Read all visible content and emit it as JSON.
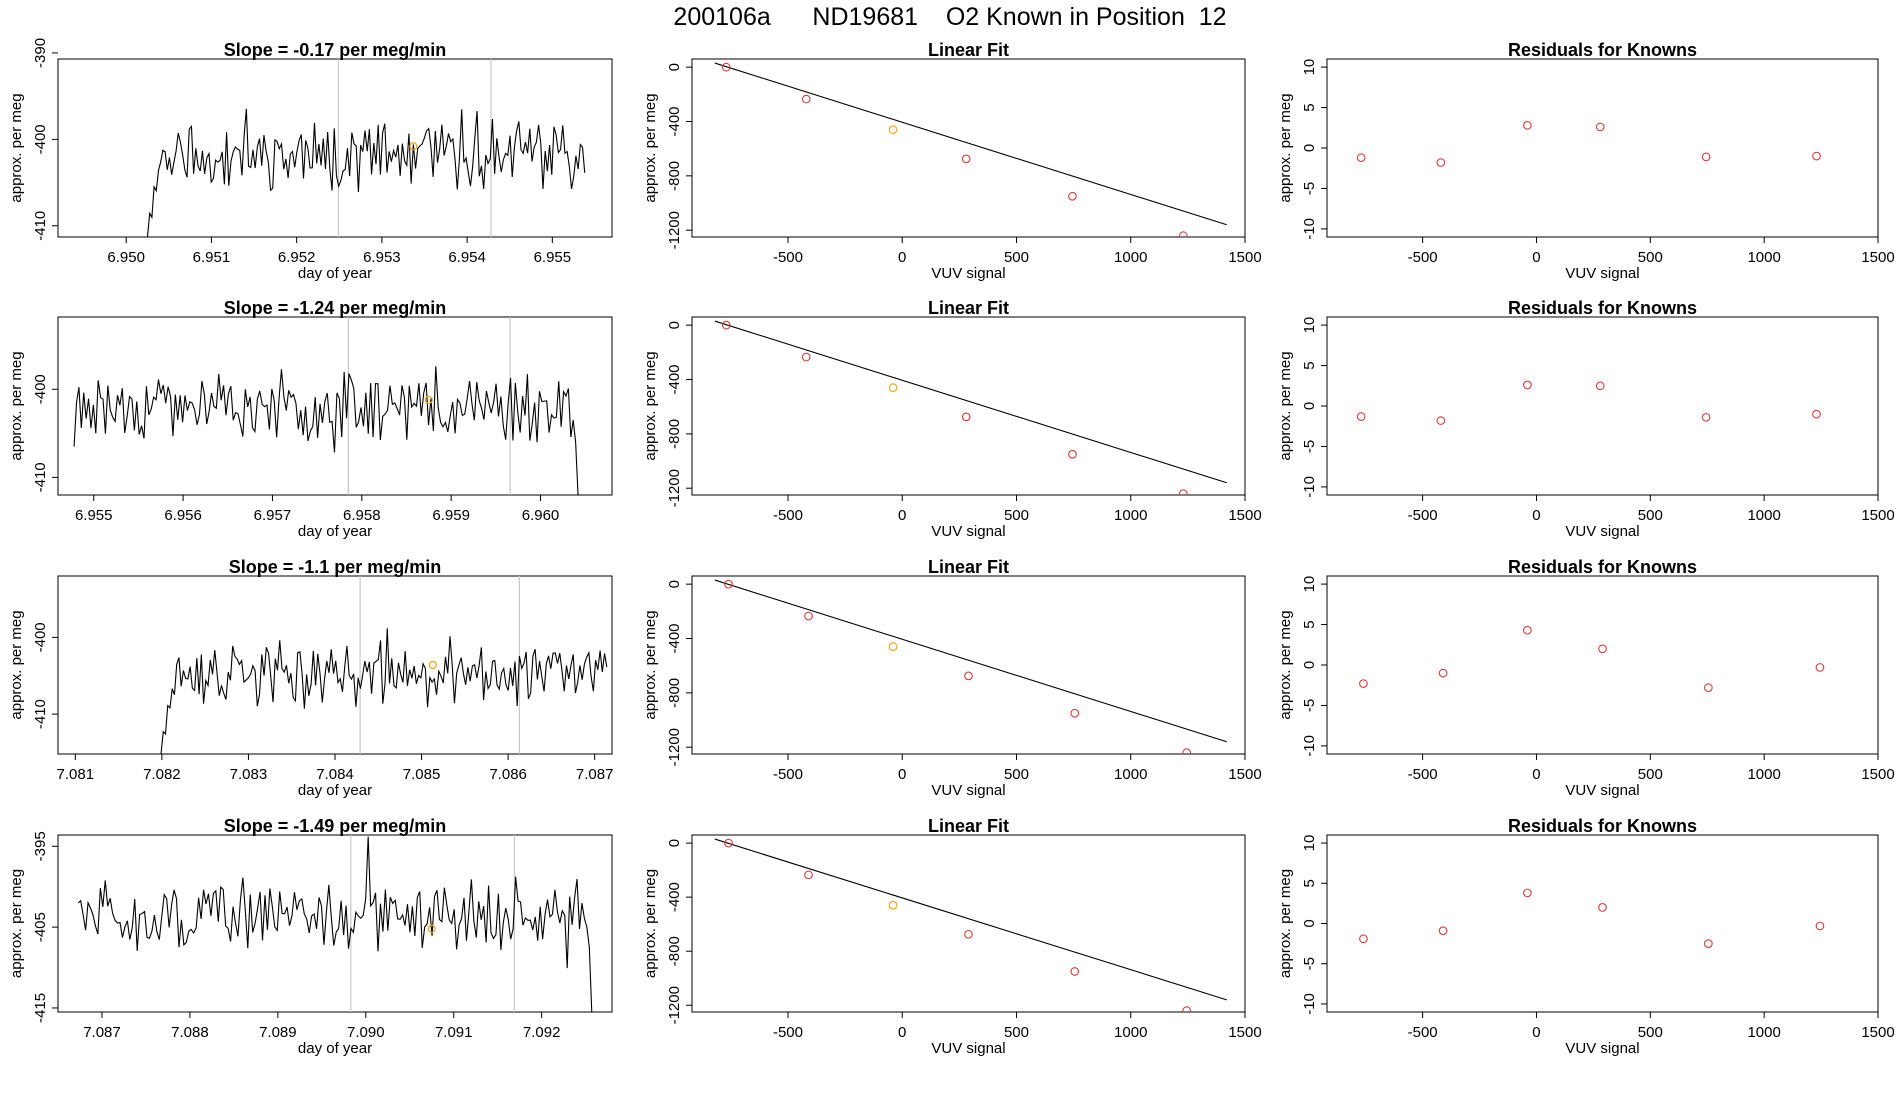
{
  "figure_title": "200106a      ND19681    O2 Known in Position  12",
  "colors": {
    "line": "#000000",
    "point": "#d93a3a",
    "highlight": "#f2a20c",
    "vline": "#c8c8c8",
    "frame": "#000000"
  },
  "chart_data": [
    {
      "type": "line",
      "panel": "timeseries",
      "row": 0,
      "title": "Slope =  -0.17  per meg/min",
      "xlabel": "day of year",
      "ylabel": "approx. per meg",
      "xlim": [
        6.9492,
        6.9557
      ],
      "ylim": [
        -411.3,
        -390.7
      ],
      "xticks": [
        6.95,
        6.951,
        6.952,
        6.953,
        6.954,
        6.955
      ],
      "xtick_labels": [
        "6.950",
        "6.951",
        "6.952",
        "6.953",
        "6.954",
        "6.955"
      ],
      "yticks": [
        -390,
        -400,
        -410
      ],
      "ytick_labels": [
        "-390",
        "-400",
        "-410"
      ],
      "vlines": [
        6.95249,
        6.95428
      ],
      "series": [
        {
          "x_start": 6.95025,
          "x_end": 6.95538,
          "baseline": -401.8,
          "amplitude": 3.0,
          "ramp_from": -411.3,
          "ramp_points": 5,
          "seed": 11,
          "n": 200
        }
      ],
      "highlight_point": {
        "x": 6.95337,
        "y": -400.8
      }
    },
    {
      "type": "scatter",
      "panel": "linear_fit",
      "row": 0,
      "title": "Linear Fit",
      "xlabel": "VUV signal",
      "ylabel": "approx. per meg",
      "xlim": [
        -920,
        1500
      ],
      "ylim": [
        -1250,
        60
      ],
      "xticks": [
        -500,
        0,
        500,
        1000,
        1500
      ],
      "xtick_labels": [
        "-500",
        "0",
        "500",
        "1000",
        "1500"
      ],
      "yticks": [
        0,
        -400,
        -800,
        -1200
      ],
      "ytick_labels": [
        "0",
        "-400",
        "-800",
        "-1200"
      ],
      "points": [
        [
          -770,
          0
        ],
        [
          -420,
          -235
        ],
        [
          -40,
          -460
        ],
        [
          280,
          -675
        ],
        [
          745,
          -950
        ],
        [
          1230,
          -1240
        ]
      ],
      "highlight_index": 2,
      "fit_line": {
        "x": [
          -820,
          1420
        ],
        "y": [
          30,
          -1160
        ]
      }
    },
    {
      "type": "scatter",
      "panel": "residuals",
      "row": 0,
      "title": "Residuals for Knowns",
      "xlabel": "VUV signal",
      "ylabel": "approx. per meg",
      "xlim": [
        -920,
        1500
      ],
      "ylim": [
        -11,
        11
      ],
      "xticks": [
        -500,
        0,
        500,
        1000,
        1500
      ],
      "xtick_labels": [
        "-500",
        "0",
        "500",
        "1000",
        "1500"
      ],
      "yticks": [
        10,
        5,
        0,
        -5,
        -10
      ],
      "ytick_labels": [
        "10",
        "5",
        "0",
        "-5",
        "-10"
      ],
      "points": [
        [
          -770,
          -1.2
        ],
        [
          -420,
          -1.8
        ],
        [
          -40,
          2.8
        ],
        [
          280,
          2.6
        ],
        [
          745,
          -1.1
        ],
        [
          1230,
          -1.0
        ]
      ]
    },
    {
      "type": "line",
      "panel": "timeseries",
      "row": 1,
      "title": "Slope =  -1.24  per meg/min",
      "xlabel": "day of year",
      "ylabel": "approx. per meg",
      "xlim": [
        6.9546,
        6.9608
      ],
      "ylim": [
        -412.0,
        -391.8
      ],
      "xticks": [
        6.955,
        6.956,
        6.957,
        6.958,
        6.959,
        6.96
      ],
      "xtick_labels": [
        "6.955",
        "6.956",
        "6.957",
        "6.958",
        "6.959",
        "6.960"
      ],
      "yticks": [
        -400,
        -410
      ],
      "ytick_labels": [
        "-400",
        "-410"
      ],
      "vlines": [
        6.95785,
        6.95966
      ],
      "series": [
        {
          "x_start": 6.95478,
          "x_end": 6.96042,
          "baseline": -402.0,
          "amplitude": 3.0,
          "start_value": -406.5,
          "end_drop": -412.0,
          "seed": 23,
          "n": 210
        }
      ],
      "highlight_point": {
        "x": 6.95875,
        "y": -401.2
      }
    },
    {
      "type": "scatter",
      "panel": "linear_fit",
      "row": 1,
      "title": "Linear Fit",
      "xlabel": "VUV signal",
      "ylabel": "approx. per meg",
      "xlim": [
        -920,
        1500
      ],
      "ylim": [
        -1250,
        60
      ],
      "xticks": [
        -500,
        0,
        500,
        1000,
        1500
      ],
      "xtick_labels": [
        "-500",
        "0",
        "500",
        "1000",
        "1500"
      ],
      "yticks": [
        0,
        -400,
        -800,
        -1200
      ],
      "ytick_labels": [
        "0",
        "-400",
        "-800",
        "-1200"
      ],
      "points": [
        [
          -770,
          0
        ],
        [
          -420,
          -235
        ],
        [
          -40,
          -460
        ],
        [
          280,
          -675
        ],
        [
          745,
          -950
        ],
        [
          1230,
          -1240
        ]
      ],
      "highlight_index": 2,
      "fit_line": {
        "x": [
          -820,
          1420
        ],
        "y": [
          30,
          -1160
        ]
      }
    },
    {
      "type": "scatter",
      "panel": "residuals",
      "row": 1,
      "title": "Residuals for Knowns",
      "xlabel": "VUV signal",
      "ylabel": "approx. per meg",
      "xlim": [
        -920,
        1500
      ],
      "ylim": [
        -11,
        11
      ],
      "xticks": [
        -500,
        0,
        500,
        1000,
        1500
      ],
      "xtick_labels": [
        "-500",
        "0",
        "500",
        "1000",
        "1500"
      ],
      "yticks": [
        10,
        5,
        0,
        -5,
        -10
      ],
      "ytick_labels": [
        "10",
        "5",
        "0",
        "-5",
        "-10"
      ],
      "points": [
        [
          -770,
          -1.3
        ],
        [
          -420,
          -1.8
        ],
        [
          -40,
          2.6
        ],
        [
          280,
          2.5
        ],
        [
          745,
          -1.4
        ],
        [
          1230,
          -1.0
        ]
      ]
    },
    {
      "type": "line",
      "panel": "timeseries",
      "row": 2,
      "title": "Slope =  -1.1  per meg/min",
      "xlabel": "day of year",
      "ylabel": "approx. per meg",
      "xlim": [
        7.0808,
        7.0872
      ],
      "ylim": [
        -415.2,
        -392.0
      ],
      "xticks": [
        7.081,
        7.082,
        7.083,
        7.084,
        7.085,
        7.086,
        7.087
      ],
      "xtick_labels": [
        "7.081",
        "7.082",
        "7.083",
        "7.084",
        "7.085",
        "7.086",
        "7.087"
      ],
      "yticks": [
        -400,
        -410
      ],
      "ytick_labels": [
        "-400",
        "-410"
      ],
      "vlines": [
        7.08429,
        7.08613
      ],
      "series": [
        {
          "x_start": 7.08199,
          "x_end": 7.08714,
          "baseline": -404.8,
          "amplitude": 3.2,
          "ramp_from": -415.2,
          "ramp_points": 5,
          "seed": 37,
          "n": 200
        }
      ],
      "highlight_point": {
        "x": 7.08513,
        "y": -403.6
      }
    },
    {
      "type": "scatter",
      "panel": "linear_fit",
      "row": 2,
      "title": "Linear Fit",
      "xlabel": "VUV signal",
      "ylabel": "approx. per meg",
      "xlim": [
        -920,
        1500
      ],
      "ylim": [
        -1250,
        60
      ],
      "xticks": [
        -500,
        0,
        500,
        1000,
        1500
      ],
      "xtick_labels": [
        "-500",
        "0",
        "500",
        "1000",
        "1500"
      ],
      "yticks": [
        0,
        -400,
        -800,
        -1200
      ],
      "ytick_labels": [
        "0",
        "-400",
        "-800",
        "-1200"
      ],
      "points": [
        [
          -760,
          0
        ],
        [
          -410,
          -235
        ],
        [
          -40,
          -460
        ],
        [
          290,
          -675
        ],
        [
          755,
          -950
        ],
        [
          1245,
          -1240
        ]
      ],
      "highlight_index": 2,
      "fit_line": {
        "x": [
          -820,
          1420
        ],
        "y": [
          30,
          -1160
        ]
      }
    },
    {
      "type": "scatter",
      "panel": "residuals",
      "row": 2,
      "title": "Residuals for Knowns",
      "xlabel": "VUV signal",
      "ylabel": "approx. per meg",
      "xlim": [
        -920,
        1500
      ],
      "ylim": [
        -11,
        11
      ],
      "xticks": [
        -500,
        0,
        500,
        1000,
        1500
      ],
      "xtick_labels": [
        "-500",
        "0",
        "500",
        "1000",
        "1500"
      ],
      "yticks": [
        10,
        5,
        0,
        -5,
        -10
      ],
      "ytick_labels": [
        "10",
        "5",
        "0",
        "-5",
        "-10"
      ],
      "points": [
        [
          -760,
          -2.3
        ],
        [
          -410,
          -1.0
        ],
        [
          -40,
          4.3
        ],
        [
          290,
          2.0
        ],
        [
          755,
          -2.8
        ],
        [
          1245,
          -0.3
        ]
      ]
    },
    {
      "type": "line",
      "panel": "timeseries",
      "row": 3,
      "title": "Slope =  -1.49  per meg/min",
      "xlabel": "day of year",
      "ylabel": "approx. per meg",
      "xlim": [
        7.0865,
        7.0928
      ],
      "ylim": [
        -415.5,
        -393.6
      ],
      "xticks": [
        7.087,
        7.088,
        7.089,
        7.09,
        7.091,
        7.092
      ],
      "xtick_labels": [
        "7.087",
        "7.088",
        "7.089",
        "7.090",
        "7.091",
        "7.092"
      ],
      "yticks": [
        -395,
        -405,
        -415
      ],
      "ytick_labels": [
        "-395",
        "-405",
        "-415"
      ],
      "vlines": [
        7.08983,
        7.09169
      ],
      "series": [
        {
          "x_start": 7.08673,
          "x_end": 7.09257,
          "baseline": -403.5,
          "amplitude": 3.3,
          "start_value": -402.0,
          "end_drop": -415.5,
          "spike": {
            "x": 7.09002,
            "y": -393.8
          },
          "seed": 51,
          "n": 210
        }
      ],
      "highlight_point": {
        "x": 7.09075,
        "y": -405.2
      }
    },
    {
      "type": "scatter",
      "panel": "linear_fit",
      "row": 3,
      "title": "Linear Fit",
      "xlabel": "VUV signal",
      "ylabel": "approx. per meg",
      "xlim": [
        -920,
        1500
      ],
      "ylim": [
        -1250,
        60
      ],
      "xticks": [
        -500,
        0,
        500,
        1000,
        1500
      ],
      "xtick_labels": [
        "-500",
        "0",
        "500",
        "1000",
        "1500"
      ],
      "yticks": [
        0,
        -400,
        -800,
        -1200
      ],
      "ytick_labels": [
        "0",
        "-400",
        "-800",
        "-1200"
      ],
      "points": [
        [
          -760,
          0
        ],
        [
          -410,
          -235
        ],
        [
          -40,
          -460
        ],
        [
          290,
          -675
        ],
        [
          755,
          -950
        ],
        [
          1245,
          -1240
        ]
      ],
      "highlight_index": 2,
      "fit_line": {
        "x": [
          -820,
          1420
        ],
        "y": [
          30,
          -1160
        ]
      }
    },
    {
      "type": "scatter",
      "panel": "residuals",
      "row": 3,
      "title": "Residuals for Knowns",
      "xlabel": "VUV signal",
      "ylabel": "approx. per meg",
      "xlim": [
        -920,
        1500
      ],
      "ylim": [
        -11,
        11
      ],
      "xticks": [
        -500,
        0,
        500,
        1000,
        1500
      ],
      "xtick_labels": [
        "-500",
        "0",
        "500",
        "1000",
        "1500"
      ],
      "yticks": [
        10,
        5,
        0,
        -5,
        -10
      ],
      "ytick_labels": [
        "10",
        "5",
        "0",
        "-5",
        "-10"
      ],
      "points": [
        [
          -760,
          -1.9
        ],
        [
          -410,
          -0.9
        ],
        [
          -40,
          3.8
        ],
        [
          290,
          2.0
        ],
        [
          755,
          -2.5
        ],
        [
          1245,
          -0.3
        ]
      ]
    }
  ]
}
